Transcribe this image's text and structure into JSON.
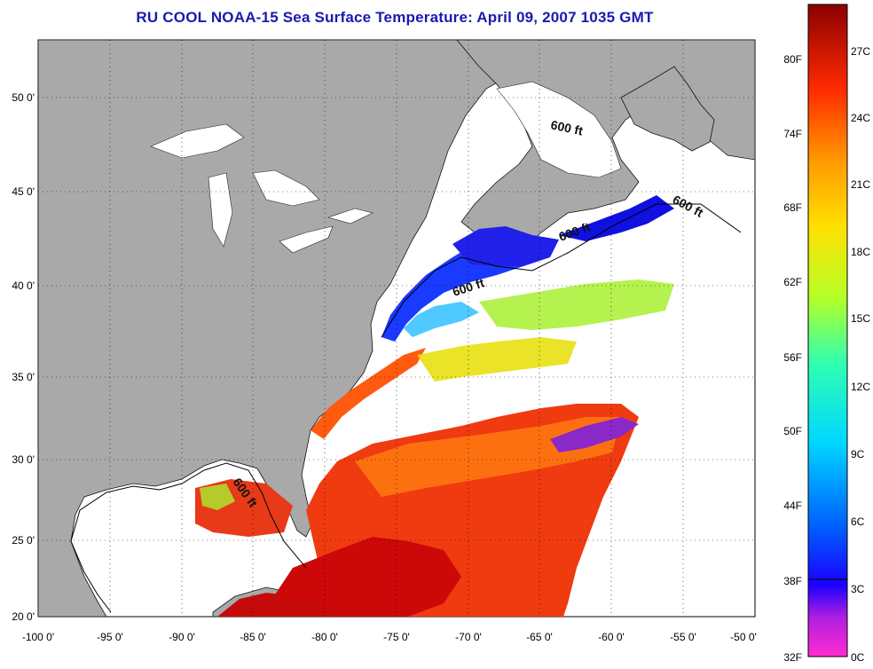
{
  "title": "RU COOL  NOAA-15  Sea Surface Temperature:  April 09, 2007 1035 GMT",
  "map": {
    "lon_range": [
      -100,
      -50
    ],
    "lat_range": [
      20,
      52.5
    ],
    "lon_ticks": [
      "-100 0'",
      "-95 0'",
      "-90 0'",
      "-85 0'",
      "-80 0'",
      "-75 0'",
      "-70 0'",
      "-65 0'",
      "-60 0'",
      "-55 0'",
      "-50 0'"
    ],
    "lat_ticks": [
      "20 0'",
      "25 0'",
      "30 0'",
      "35 0'",
      "40 0'",
      "45 0'",
      "50 0'"
    ],
    "contour_label": "600 ft",
    "land_color": "#a9a9a9",
    "cloud_color": "#ffffff"
  },
  "colorbar": {
    "fahrenheit_labels": [
      "80F",
      "74F",
      "68F",
      "62F",
      "56F",
      "50F",
      "44F",
      "38F",
      "32F"
    ],
    "celsius_labels": [
      "27C",
      "24C",
      "21C",
      "18C",
      "15C",
      "12C",
      "9C",
      "6C",
      "3C",
      "0C"
    ],
    "stops": [
      "#ff2ccf",
      "#9a1edb",
      "#1a00ff",
      "#0070ff",
      "#00e0ff",
      "#3cff9a",
      "#c8ff20",
      "#ffd800",
      "#ff8c00",
      "#ff2a00",
      "#ce0000",
      "#8b0000"
    ]
  }
}
